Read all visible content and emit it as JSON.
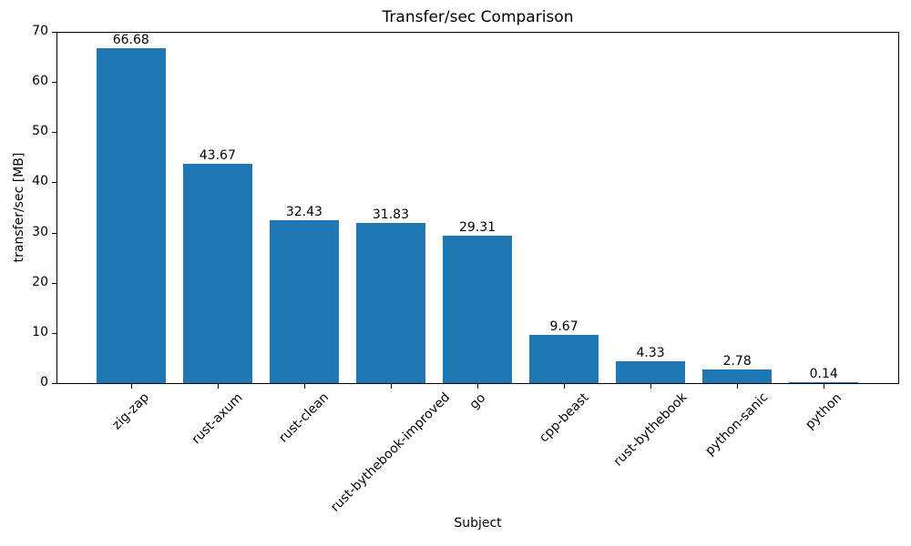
{
  "chart_data": {
    "type": "bar",
    "title": "Transfer/sec Comparison",
    "xlabel": "Subject",
    "ylabel": "transfer/sec [MB]",
    "categories": [
      "zig-zap",
      "rust-axum",
      "rust-clean",
      "rust-bythebook-improved",
      "go",
      "cpp-beast",
      "rust-bythebook",
      "python-sanic",
      "python"
    ],
    "values": [
      66.68,
      43.67,
      32.43,
      31.83,
      29.31,
      9.67,
      4.33,
      2.78,
      0.14
    ],
    "value_labels": [
      "66.68",
      "43.67",
      "32.43",
      "31.83",
      "29.31",
      "9.67",
      "4.33",
      "2.78",
      "0.14"
    ],
    "ylim": [
      0,
      70
    ],
    "yticks": [
      0,
      10,
      20,
      30,
      40,
      50,
      60,
      70
    ],
    "ytick_labels": [
      "0",
      "10",
      "20",
      "30",
      "40",
      "50",
      "60",
      "70"
    ],
    "bar_color": "#1f77b4",
    "axis_color": "#000000",
    "grid": false,
    "legend_position": "none"
  }
}
